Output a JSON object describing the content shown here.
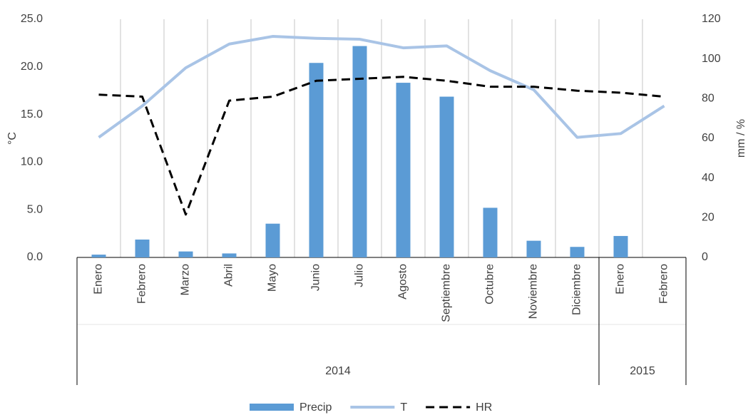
{
  "chart_data": {
    "type": "combo",
    "y_label": "°C",
    "y2_label": "mm / %",
    "categories": [
      "Enero",
      "Febrero",
      "Marzo",
      "Abril",
      "Mayo",
      "Junio",
      "Julio",
      "Agosto",
      "Septiembre",
      "Octubre",
      "Noviembre",
      "Diciembre",
      "Enero",
      "Febrero"
    ],
    "groups": [
      {
        "label": "2014",
        "span": 12
      },
      {
        "label": "2015",
        "span": 2
      }
    ],
    "series": [
      {
        "name": "Precip",
        "type": "bar",
        "axis": "y2",
        "color": "#5b9bd5",
        "values": [
          1.4,
          9,
          3,
          2,
          17,
          98,
          106.5,
          88,
          81,
          25,
          8.4,
          5.3,
          10.8,
          0
        ]
      },
      {
        "name": "T",
        "type": "line",
        "axis": "y",
        "color": "#a9c4e6",
        "values": [
          12.6,
          15.9,
          19.9,
          22.4,
          23.2,
          23.0,
          22.9,
          22.0,
          22.2,
          19.6,
          17.6,
          12.6,
          13.0,
          15.9
        ]
      },
      {
        "name": "HR",
        "type": "line",
        "axis": "y2",
        "color": "#000000",
        "dash": true,
        "values": [
          82,
          81,
          21.6,
          79,
          81,
          89,
          90,
          91,
          89,
          86,
          86,
          84,
          83,
          81
        ]
      }
    ],
    "ylim": [
      0,
      25
    ],
    "yticks": [
      {
        "value": 0,
        "label": "0.0"
      },
      {
        "value": 5,
        "label": "5.0"
      },
      {
        "value": 10,
        "label": "10.0"
      },
      {
        "value": 15,
        "label": "15.0"
      },
      {
        "value": 20,
        "label": "20.0"
      },
      {
        "value": 25,
        "label": "25.0"
      }
    ],
    "y2lim": [
      0,
      120
    ],
    "y2ticks": [
      0,
      20,
      40,
      60,
      80,
      100,
      120
    ],
    "grid": true,
    "legend": "bottom"
  }
}
